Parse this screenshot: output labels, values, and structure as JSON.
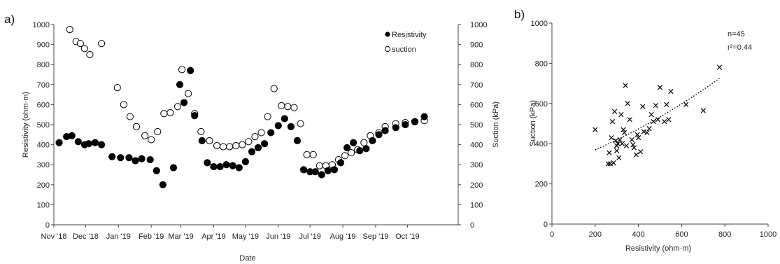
{
  "chart_data": [
    {
      "panel_label": "a)",
      "type": "scatter",
      "xlabel": "Date",
      "ylabel": "Resistivity (ohm·m)",
      "y2label": "Suction (kPa)",
      "ylim": [
        0,
        1000
      ],
      "y2lim": [
        0,
        1000
      ],
      "yticks": [
        0,
        100,
        200,
        300,
        400,
        500,
        600,
        700,
        800,
        900,
        1000
      ],
      "xlim": [
        "2018-11-01",
        "2019-11-18"
      ],
      "xticks": [
        {
          "date": "2018-11-01",
          "label": "Nov '18"
        },
        {
          "date": "2018-12-01",
          "label": "Dec '18"
        },
        {
          "date": "2019-01-01",
          "label": "Jan '19"
        },
        {
          "date": "2019-02-01",
          "label": "Feb '19"
        },
        {
          "date": "2019-03-01",
          "label": "Mar '19"
        },
        {
          "date": "2019-04-01",
          "label": "Apr '19"
        },
        {
          "date": "2019-05-01",
          "label": "May '19"
        },
        {
          "date": "2019-06-01",
          "label": "Jun '19"
        },
        {
          "date": "2019-07-01",
          "label": "Jul '19"
        },
        {
          "date": "2019-08-01",
          "label": "Aug '19"
        },
        {
          "date": "2019-09-01",
          "label": "Sep '19"
        },
        {
          "date": "2019-10-01",
          "label": "Oct '19"
        }
      ],
      "legend_position": "top-right",
      "grid": false,
      "series": [
        {
          "name": "Resistivity",
          "marker": "filled-circle",
          "color": "#000000",
          "axis": "left",
          "x": [
            "2018-11-06",
            "2018-11-13",
            "2018-11-18",
            "2018-11-24",
            "2018-11-30",
            "2018-12-04",
            "2018-12-10",
            "2018-12-16",
            "2018-12-26",
            "2019-01-03",
            "2019-01-11",
            "2019-01-17",
            "2019-01-23",
            "2019-01-31",
            "2019-02-06",
            "2019-02-12",
            "2019-02-22",
            "2019-02-28",
            "2019-03-04",
            "2019-03-10",
            "2019-03-14",
            "2019-03-21",
            "2019-03-26",
            "2019-04-01",
            "2019-04-07",
            "2019-04-13",
            "2019-04-19",
            "2019-04-25",
            "2019-05-01",
            "2019-05-07",
            "2019-05-13",
            "2019-05-19",
            "2019-05-25",
            "2019-06-01",
            "2019-06-07",
            "2019-06-13",
            "2019-06-19",
            "2019-06-25",
            "2019-07-01",
            "2019-07-06",
            "2019-07-12",
            "2019-07-18",
            "2019-07-24",
            "2019-07-30",
            "2019-08-05",
            "2019-08-11",
            "2019-08-17",
            "2019-08-23",
            "2019-08-29",
            "2019-09-04",
            "2019-09-10",
            "2019-09-20",
            "2019-09-29",
            "2019-10-08",
            "2019-10-17"
          ],
          "y": [
            410,
            440,
            445,
            415,
            400,
            405,
            410,
            400,
            340,
            335,
            335,
            320,
            330,
            325,
            270,
            200,
            285,
            700,
            610,
            770,
            545,
            420,
            310,
            290,
            290,
            300,
            295,
            285,
            315,
            365,
            385,
            405,
            460,
            495,
            530,
            490,
            420,
            275,
            265,
            265,
            250,
            270,
            275,
            310,
            385,
            410,
            370,
            380,
            420,
            450,
            470,
            485,
            500,
            515,
            540
          ]
        },
        {
          "name": "suction",
          "marker": "open-circle",
          "color": "#000000",
          "axis": "right",
          "x": [
            "2018-11-16",
            "2018-11-22",
            "2018-11-26",
            "2018-11-30",
            "2018-12-05",
            "2018-12-16",
            "2018-12-31",
            "2019-01-06",
            "2019-01-12",
            "2019-01-18",
            "2019-01-26",
            "2019-02-01",
            "2019-02-07",
            "2019-02-13",
            "2019-02-19",
            "2019-02-26",
            "2019-03-02",
            "2019-03-08",
            "2019-03-14",
            "2019-03-20",
            "2019-03-28",
            "2019-04-04",
            "2019-04-10",
            "2019-04-16",
            "2019-04-22",
            "2019-04-28",
            "2019-05-04",
            "2019-05-10",
            "2019-05-16",
            "2019-05-22",
            "2019-05-28",
            "2019-06-04",
            "2019-06-10",
            "2019-06-16",
            "2019-06-22",
            "2019-06-28",
            "2019-07-04",
            "2019-07-10",
            "2019-07-16",
            "2019-07-22",
            "2019-07-28",
            "2019-08-03",
            "2019-08-09",
            "2019-08-15",
            "2019-08-21",
            "2019-08-27",
            "2019-09-04",
            "2019-09-10",
            "2019-09-20",
            "2019-09-29",
            "2019-10-08",
            "2019-10-17"
          ],
          "y": [
            975,
            915,
            905,
            880,
            850,
            905,
            685,
            600,
            540,
            490,
            445,
            425,
            465,
            555,
            560,
            590,
            775,
            655,
            555,
            465,
            420,
            395,
            390,
            390,
            395,
            400,
            415,
            440,
            460,
            540,
            680,
            595,
            590,
            585,
            505,
            350,
            350,
            295,
            295,
            300,
            325,
            345,
            360,
            375,
            410,
            445,
            460,
            490,
            505,
            510,
            515,
            520
          ]
        }
      ]
    },
    {
      "panel_label": "b)",
      "type": "scatter",
      "xlabel": "Resistivity (ohm·m)",
      "ylabel": "Suction (kPa)",
      "xlim": [
        0,
        1000
      ],
      "ylim": [
        0,
        1000
      ],
      "xticks": [
        0,
        200,
        400,
        600,
        800,
        1000
      ],
      "yticks": [
        0,
        200,
        400,
        600,
        800,
        1000
      ],
      "grid": false,
      "annotations": [
        "n=45",
        "r²=0.44"
      ],
      "trendline": {
        "style": "dotted",
        "x_range": [
          200,
          775
        ],
        "y_at_start": 370,
        "y_at_end": 725
      },
      "series": [
        {
          "marker": "x",
          "color": "#000000",
          "x": [
            200,
            260,
            265,
            270,
            275,
            280,
            285,
            290,
            295,
            300,
            305,
            310,
            315,
            320,
            325,
            330,
            335,
            340,
            345,
            350,
            370,
            375,
            380,
            390,
            395,
            400,
            410,
            420,
            425,
            440,
            450,
            460,
            470,
            480,
            490,
            500,
            520,
            530,
            540,
            550,
            620,
            700,
            775,
            300,
            360
          ],
          "y": [
            470,
            300,
            355,
            300,
            430,
            510,
            305,
            560,
            415,
            390,
            400,
            330,
            420,
            545,
            400,
            470,
            455,
            690,
            390,
            600,
            420,
            395,
            380,
            345,
            445,
            430,
            360,
            585,
            460,
            455,
            475,
            545,
            510,
            590,
            520,
            680,
            510,
            595,
            520,
            660,
            595,
            565,
            780,
            365,
            520
          ]
        }
      ]
    }
  ],
  "legend": {
    "resistivity_label": "Resistivity",
    "suction_label": "suction"
  }
}
